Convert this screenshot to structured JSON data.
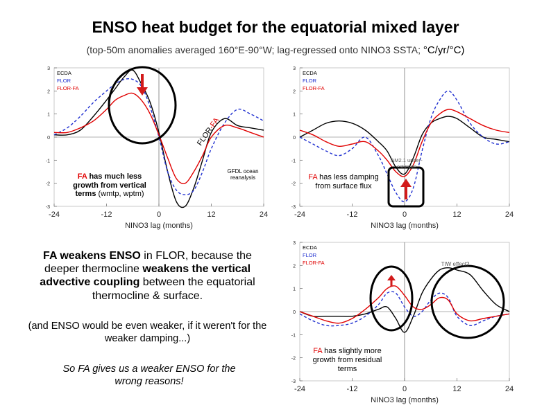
{
  "title": "ENSO heat budget for the equatorial mixed layer",
  "subtitle": "(top-50m anomalies averaged 160°E-90°W; lag-regressed onto NINO3 SSTA;",
  "subtitle_units": "°C/yr/°C)",
  "notes": {
    "fa_growth_prefix": "FA",
    "fa_growth_line1": "has much less",
    "fa_growth_line2": "growth from vertical",
    "fa_growth_line3a": "terms",
    "fa_growth_line3b": "(wmtp, wptm)",
    "gfdl": "GFDL ocean reanalysis",
    "rotated_flor": "FLOR",
    "rotated_fa": "-FA",
    "fa_damping_prefix": "FA",
    "fa_damping_rest": "has less damping from surface flux",
    "am2": "AM2.1 under-estimate",
    "tiw": "TIW effect?",
    "fa_resid_prefix": "FA",
    "fa_resid_rest": "has slightly more growth from residual terms"
  },
  "main_text": {
    "p1_part1": "FA weakens ENSO",
    "p1_part2": " in FLOR, because the deeper thermocline ",
    "p1_part3": "weakens the vertical advective coupling",
    "p1_part4": " between the equatorial thermocline & surface.",
    "p2": "(and ENSO would be even weaker, if it weren't for the weaker damping...)",
    "p3": "So FA gives us a weaker ENSO for the wrong reasons!"
  },
  "colors": {
    "ecda": "#000000",
    "flor": "#1f2fd0",
    "flor_fa": "#e00000",
    "circle": "#000000",
    "arrow_red": "#d21a1a"
  },
  "chart_data": [
    {
      "type": "line",
      "title": "",
      "xlabel": "NINO3 lag (months)",
      "ylabel": "",
      "xlim": [
        -24,
        24
      ],
      "ylim": [
        -3,
        3
      ],
      "xticks": [
        -24,
        -12,
        0,
        12,
        24
      ],
      "xtick_labels": [
        "-24",
        "-12",
        "0",
        "12",
        "24"
      ],
      "yticks": [
        -3,
        -2,
        -1,
        0,
        1,
        2,
        3
      ],
      "ytick_labels": [
        "-3",
        "-2",
        "-1",
        "0",
        "1",
        "2",
        "3"
      ],
      "legend": [
        "ECDA",
        "FLOR",
        "FLOR-FA"
      ],
      "legend_position": "top-left",
      "series": [
        {
          "name": "ECDA",
          "style": "solid",
          "color": "#000000",
          "x": [
            -24,
            -21,
            -18,
            -15,
            -12,
            -10,
            -8,
            -6,
            -4,
            -2,
            0,
            2,
            4,
            6,
            8,
            10,
            12,
            15,
            18,
            21,
            24
          ],
          "y": [
            0.1,
            0.1,
            0.3,
            0.9,
            1.6,
            2.1,
            2.6,
            2.9,
            2.3,
            1.5,
            0.2,
            -1.5,
            -2.8,
            -3.0,
            -2.2,
            -1.0,
            0.2,
            0.8,
            0.5,
            0.4,
            0.3
          ]
        },
        {
          "name": "FLOR",
          "style": "dashed",
          "color": "#1f2fd0",
          "x": [
            -24,
            -21,
            -18,
            -15,
            -12,
            -10,
            -8,
            -6,
            -4,
            -2,
            0,
            2,
            4,
            6,
            8,
            10,
            12,
            15,
            18,
            21,
            24
          ],
          "y": [
            0.1,
            0.4,
            0.9,
            1.5,
            2.0,
            2.3,
            2.5,
            2.5,
            2.2,
            1.3,
            0.0,
            -1.5,
            -2.3,
            -2.5,
            -2.3,
            -1.5,
            -0.5,
            0.6,
            1.2,
            1.0,
            0.7
          ]
        },
        {
          "name": "FLOR-FA",
          "style": "solid",
          "color": "#e00000",
          "x": [
            -24,
            -21,
            -18,
            -15,
            -12,
            -10,
            -8,
            -6,
            -4,
            -2,
            0,
            2,
            4,
            6,
            8,
            10,
            12,
            15,
            18,
            21,
            24
          ],
          "y": [
            0.2,
            0.2,
            0.4,
            0.7,
            1.2,
            1.6,
            1.8,
            1.9,
            1.6,
            1.0,
            0.1,
            -0.9,
            -1.8,
            -2.0,
            -1.5,
            -0.8,
            0.0,
            0.5,
            0.4,
            0.2,
            0.0
          ]
        }
      ]
    },
    {
      "type": "line",
      "title": "",
      "xlabel": "NINO3 lag (months)",
      "ylabel": "",
      "xlim": [
        -24,
        24
      ],
      "ylim": [
        -3,
        3
      ],
      "xticks": [
        -24,
        -12,
        0,
        12,
        24
      ],
      "xtick_labels": [
        "-24",
        "-12",
        "0",
        "12",
        "24"
      ],
      "yticks": [
        -3,
        -2,
        -1,
        0,
        1,
        2,
        3
      ],
      "ytick_labels": [
        "-3",
        "-2",
        "-1",
        "0",
        "1",
        "2",
        "3"
      ],
      "legend": [
        "ECDA",
        "FLOR",
        "FLOR-FA"
      ],
      "legend_position": "top-left",
      "series": [
        {
          "name": "ECDA",
          "style": "solid",
          "color": "#000000",
          "x": [
            -24,
            -21,
            -18,
            -15,
            -12,
            -9,
            -6,
            -4,
            -2,
            0,
            2,
            4,
            6,
            8,
            10,
            12,
            15,
            18,
            21,
            24
          ],
          "y": [
            0.0,
            0.3,
            0.6,
            0.7,
            0.6,
            0.3,
            -0.2,
            -0.6,
            -1.3,
            -1.6,
            -0.9,
            0.1,
            0.6,
            0.8,
            0.9,
            0.8,
            0.4,
            0.0,
            -0.1,
            -0.2
          ]
        },
        {
          "name": "FLOR",
          "style": "dashed",
          "color": "#1f2fd0",
          "x": [
            -24,
            -21,
            -18,
            -15,
            -12,
            -9,
            -6,
            -4,
            -2,
            0,
            2,
            4,
            6,
            8,
            10,
            12,
            15,
            18,
            21,
            24
          ],
          "y": [
            0.0,
            -0.3,
            -0.6,
            -0.8,
            -0.5,
            0.0,
            -0.8,
            -1.6,
            -2.4,
            -2.8,
            -2.2,
            -0.6,
            0.8,
            1.6,
            2.0,
            1.6,
            0.6,
            0.0,
            -0.3,
            -0.2
          ]
        },
        {
          "name": "FLOR-FA",
          "style": "solid",
          "color": "#e00000",
          "x": [
            -24,
            -21,
            -18,
            -15,
            -12,
            -9,
            -6,
            -4,
            -2,
            0,
            2,
            4,
            6,
            8,
            10,
            12,
            15,
            18,
            21,
            24
          ],
          "y": [
            0.3,
            0.1,
            -0.2,
            -0.4,
            -0.3,
            -0.2,
            -0.6,
            -1.0,
            -1.5,
            -1.7,
            -1.2,
            -0.2,
            0.6,
            1.0,
            1.2,
            1.1,
            0.8,
            0.5,
            0.3,
            0.2
          ]
        }
      ]
    },
    {
      "type": "line",
      "title": "",
      "xlabel": "NINO3 lag (months)",
      "ylabel": "",
      "xlim": [
        -24,
        24
      ],
      "ylim": [
        -3,
        3
      ],
      "xticks": [
        -24,
        -12,
        0,
        12,
        24
      ],
      "xtick_labels": [
        "-24",
        "-12",
        "0",
        "12",
        "24"
      ],
      "yticks": [
        -3,
        -2,
        -1,
        0,
        1,
        2,
        3
      ],
      "ytick_labels": [
        "-3",
        "-2",
        "-1",
        "0",
        "1",
        "2",
        "3"
      ],
      "legend": [
        "ECDA",
        "FLOR",
        "FLOR-FA"
      ],
      "legend_position": "top-left",
      "series": [
        {
          "name": "ECDA",
          "style": "solid",
          "color": "#000000",
          "x": [
            -24,
            -21,
            -18,
            -15,
            -12,
            -9,
            -6,
            -4,
            -2,
            0,
            2,
            4,
            6,
            8,
            10,
            12,
            15,
            18,
            21,
            24
          ],
          "y": [
            0.0,
            -0.2,
            -0.2,
            -0.2,
            -0.2,
            -0.1,
            0.1,
            0.2,
            -0.3,
            -0.9,
            -0.2,
            0.8,
            1.4,
            1.8,
            1.9,
            1.8,
            1.6,
            0.9,
            0.3,
            0.0
          ]
        },
        {
          "name": "FLOR",
          "style": "dashed",
          "color": "#1f2fd0",
          "x": [
            -24,
            -21,
            -18,
            -15,
            -12,
            -9,
            -6,
            -4,
            -2,
            0,
            2,
            4,
            6,
            8,
            10,
            12,
            15,
            18,
            21,
            24
          ],
          "y": [
            -0.1,
            -0.4,
            -0.6,
            -0.6,
            -0.5,
            -0.2,
            0.3,
            0.8,
            0.8,
            0.2,
            -0.2,
            0.0,
            0.5,
            0.8,
            0.6,
            -0.2,
            -0.6,
            -0.4,
            -0.2,
            -0.1
          ]
        },
        {
          "name": "FLOR-FA",
          "style": "solid",
          "color": "#e00000",
          "x": [
            -24,
            -21,
            -18,
            -15,
            -12,
            -9,
            -6,
            -4,
            -2,
            0,
            2,
            4,
            6,
            8,
            10,
            12,
            15,
            18,
            21,
            24
          ],
          "y": [
            0.0,
            -0.2,
            -0.4,
            -0.5,
            -0.3,
            0.1,
            0.6,
            1.0,
            1.1,
            0.7,
            0.2,
            0.1,
            0.3,
            0.6,
            0.5,
            -0.1,
            -0.4,
            -0.3,
            -0.2,
            -0.1
          ]
        }
      ]
    }
  ]
}
